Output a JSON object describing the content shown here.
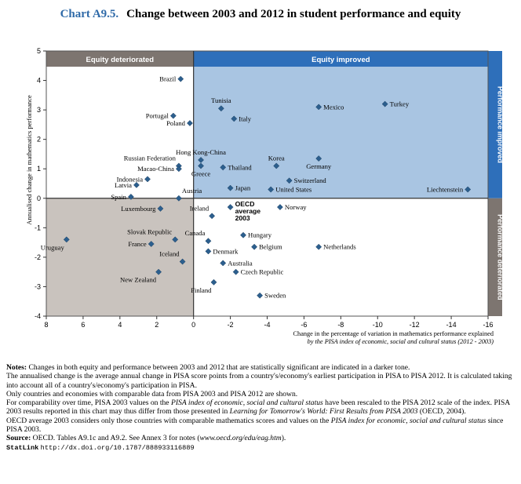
{
  "title": {
    "number": "Chart A9.5.",
    "text": "Change between 2003 and 2012 in student performance and equity"
  },
  "colors": {
    "improved_bg": "#a9c5e2",
    "improved_header": "#2e6fba",
    "deteriorated_bg": "#c9c3be",
    "deteriorated_header": "#7d7570",
    "point": "#2c5f8e"
  },
  "chart_data": {
    "type": "scatter",
    "title": "Change between 2003 and 2012 in student performance and equity",
    "ylabel": "Annualised change in mathematics performance",
    "xlabel_line1": "Change in the percentage of variation in mathematics performance explained",
    "xlabel_line2": "by the PISA index of economic, social and cultural status (2012 - 2003)",
    "xlim": [
      8,
      -16
    ],
    "ylim": [
      -4,
      5
    ],
    "x_ticks": [
      "8",
      "6",
      "4",
      "2",
      "0",
      "-2",
      "-4",
      "-6",
      "-8",
      "-10",
      "-12",
      "-14",
      "-16"
    ],
    "y_ticks": [
      "5",
      "4",
      "3",
      "2",
      "1",
      "0",
      "-1",
      "-2",
      "-3",
      "-4"
    ],
    "quadrant_labels": {
      "equity_deteriorated": "Equity deteriorated",
      "equity_improved": "Equity improved",
      "performance_improved": "Performance improved",
      "performance_deteriorated": "Performance deteriorated"
    },
    "points": [
      {
        "name": "Brazil",
        "x": 0.7,
        "y": 4.05,
        "label_pos": "left"
      },
      {
        "name": "Turkey",
        "x": -10.4,
        "y": 3.2,
        "label_pos": "right"
      },
      {
        "name": "Mexico",
        "x": -6.8,
        "y": 3.1,
        "label_pos": "right"
      },
      {
        "name": "Tunisia",
        "x": -1.5,
        "y": 3.05,
        "label_pos": "above"
      },
      {
        "name": "Portugal",
        "x": 1.1,
        "y": 2.8,
        "label_pos": "left"
      },
      {
        "name": "Italy",
        "x": -2.2,
        "y": 2.7,
        "label_pos": "right"
      },
      {
        "name": "Poland",
        "x": 0.2,
        "y": 2.55,
        "label_pos": "left"
      },
      {
        "name": "Russian Federation",
        "x": 0.8,
        "y": 1.1,
        "label_pos": "above-left"
      },
      {
        "name": "Macao-China",
        "x": 0.8,
        "y": 1.0,
        "label_pos": "left"
      },
      {
        "name": "Hong Kong-China",
        "x": -0.4,
        "y": 1.3,
        "label_pos": "above"
      },
      {
        "name": "Korea",
        "x": -4.5,
        "y": 1.1,
        "label_pos": "above"
      },
      {
        "name": "Germany",
        "x": -6.8,
        "y": 1.35,
        "label_pos": "below"
      },
      {
        "name": "Thailand",
        "x": -1.6,
        "y": 1.05,
        "label_pos": "right"
      },
      {
        "name": "Greece",
        "x": -0.4,
        "y": 1.1,
        "label_pos": "below"
      },
      {
        "name": "Switzerland",
        "x": -5.2,
        "y": 0.6,
        "label_pos": "right"
      },
      {
        "name": "Indonesia",
        "x": 2.5,
        "y": 0.65,
        "label_pos": "left"
      },
      {
        "name": "Latvia",
        "x": 3.1,
        "y": 0.45,
        "label_pos": "left"
      },
      {
        "name": "Japan",
        "x": -2.0,
        "y": 0.35,
        "label_pos": "right"
      },
      {
        "name": "United States",
        "x": -4.2,
        "y": 0.3,
        "label_pos": "right"
      },
      {
        "name": "Liechtenstein",
        "x": -14.9,
        "y": 0.3,
        "label_pos": "left"
      },
      {
        "name": "Spain",
        "x": 3.4,
        "y": 0.05,
        "label_pos": "left"
      },
      {
        "name": "Austria",
        "x": 0.8,
        "y": 0.0,
        "label_pos": "above-right"
      },
      {
        "name": "OECD average 2003",
        "x": -2.0,
        "y": -0.3,
        "label_pos": "right",
        "bold": true
      },
      {
        "name": "Norway",
        "x": -4.7,
        "y": -0.3,
        "label_pos": "right"
      },
      {
        "name": "Luxembourg",
        "x": 1.8,
        "y": -0.35,
        "label_pos": "left"
      },
      {
        "name": "Ireland",
        "x": -1.0,
        "y": -0.6,
        "label_pos": "above-left"
      },
      {
        "name": "Uruguay",
        "x": 6.9,
        "y": -1.4,
        "label_pos": "below-left"
      },
      {
        "name": "Slovak Republic",
        "x": 1.0,
        "y": -1.4,
        "label_pos": "above-left"
      },
      {
        "name": "Hungary",
        "x": -2.7,
        "y": -1.25,
        "label_pos": "right"
      },
      {
        "name": "Canada",
        "x": -0.8,
        "y": -1.45,
        "label_pos": "above-left"
      },
      {
        "name": "France",
        "x": 2.3,
        "y": -1.55,
        "label_pos": "left"
      },
      {
        "name": "Belgium",
        "x": -3.3,
        "y": -1.65,
        "label_pos": "right"
      },
      {
        "name": "Netherlands",
        "x": -6.8,
        "y": -1.65,
        "label_pos": "right"
      },
      {
        "name": "Denmark",
        "x": -0.8,
        "y": -1.8,
        "label_pos": "right"
      },
      {
        "name": "Iceland",
        "x": 0.6,
        "y": -2.15,
        "label_pos": "above-left"
      },
      {
        "name": "Australia",
        "x": -1.6,
        "y": -2.2,
        "label_pos": "right"
      },
      {
        "name": "New Zealand",
        "x": 1.9,
        "y": -2.5,
        "label_pos": "below-left"
      },
      {
        "name": "Czech Republic",
        "x": -2.3,
        "y": -2.5,
        "label_pos": "right"
      },
      {
        "name": "Finland",
        "x": -1.1,
        "y": -2.85,
        "label_pos": "below-left"
      },
      {
        "name": "Sweden",
        "x": -3.6,
        "y": -3.3,
        "label_pos": "right"
      }
    ]
  },
  "notes": {
    "line1_label": "Notes:",
    "line1": " Changes in both equity and performance between 2003 and 2012 that are statistically significant are indicated in a darker tone.",
    "line2": "The annualised change is the average annual change in PISA score points from a country's/economy's earliest participation in PISA to PISA 2012. It is calculated taking into account all of a country's/economy's participation in PISA.",
    "line3": "Only countries and economies with comparable data from PISA 2003 and PISA 2012 are shown.",
    "line4a": "For comparability over time, PISA 2003 values on the ",
    "line4b": "PISA index of economic, social and cultural status",
    "line4c": " have been rescaled to the PISA 2012 scale of the index. PISA 2003 results reported in this chart may thus differ from those presented in ",
    "line4d": "Learning for Tomorrow's World: First Results from PISA 2003",
    "line4e": " (OECD, 2004).",
    "line5a": "OECD average 2003 considers only those countries with comparable mathematics scores and values on the ",
    "line5b": "PISA index for economic, social and cultural status",
    "line5c": " since PISA 2003.",
    "source_label": "Source:",
    "source_text": " OECD. Tables A9.1c and A9.2. See Annex 3 for notes (",
    "source_url": "www.oecd.org/edu/eag.htm",
    "source_end": ").",
    "statlink_label": "StatLink",
    "statlink_url": "http://dx.doi.org/10.1787/888933116889"
  }
}
